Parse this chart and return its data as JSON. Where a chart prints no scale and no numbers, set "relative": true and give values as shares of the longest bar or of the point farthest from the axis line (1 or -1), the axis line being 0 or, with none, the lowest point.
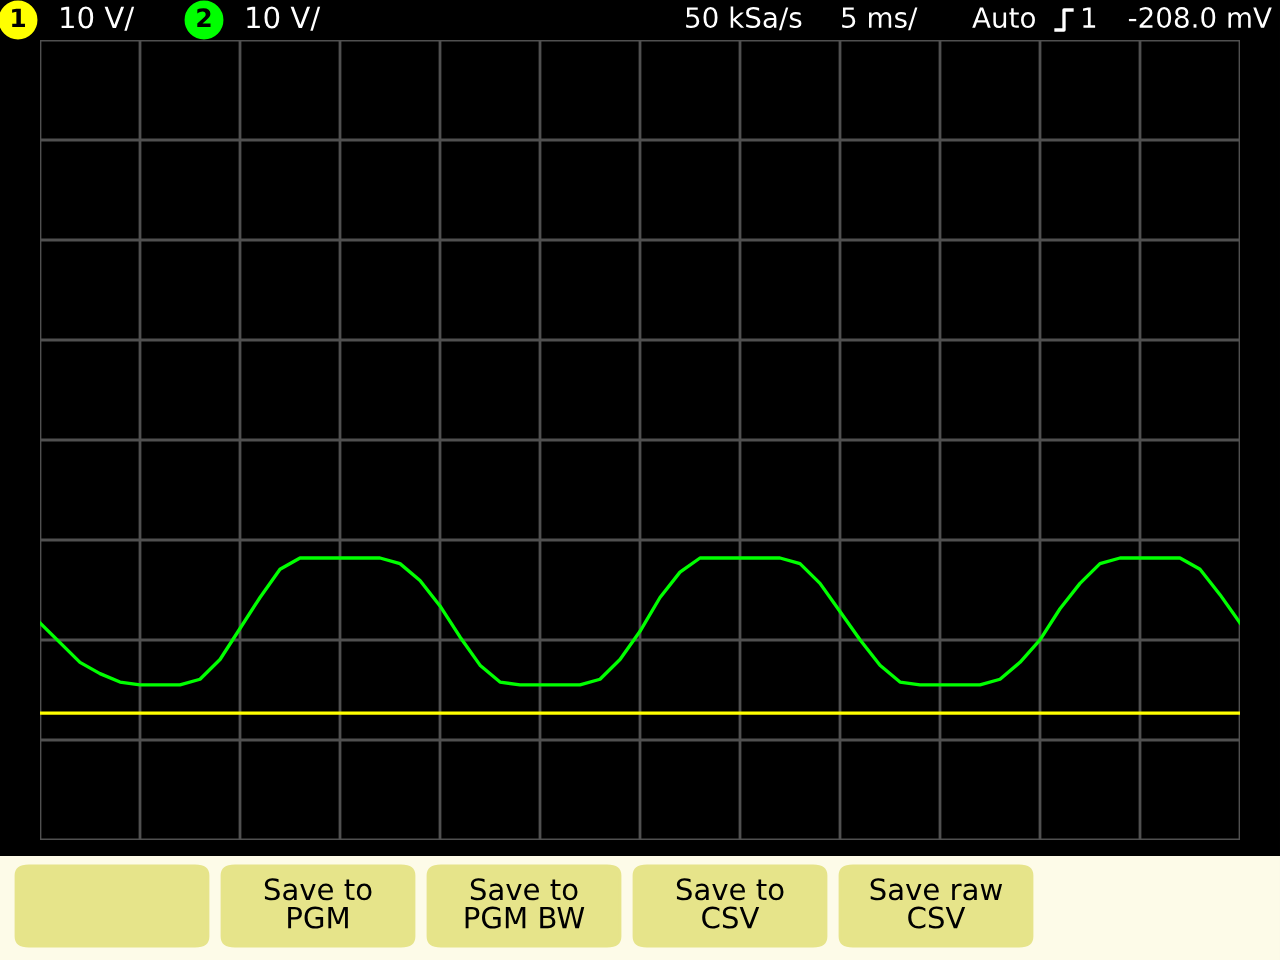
{
  "chart_data": {
    "type": "line",
    "relative": true,
    "grid": true,
    "marker": "none",
    "line_style": "solid",
    "categories": [
      null,
      null,
      null,
      null,
      null,
      null,
      null,
      null,
      null,
      null,
      null,
      null,
      null,
      null,
      null,
      null,
      null,
      null,
      null,
      null,
      null,
      null,
      null,
      null,
      null,
      null,
      null,
      null,
      null,
      null,
      null,
      null,
      null,
      null,
      null,
      null,
      null,
      null,
      null,
      null,
      null,
      null,
      null,
      null,
      null,
      null,
      null,
      null,
      null,
      null,
      null,
      null,
      null,
      null,
      null,
      null,
      null,
      null,
      null,
      null,
      null
    ],
    "series": [
      {
        "color": "#ffff00",
        "values": [
          0.45,
          0.45,
          0.45,
          0.45,
          0.45,
          0.45,
          0.45,
          0.45,
          0.45,
          0.45,
          0.45,
          0.45,
          0.45,
          0.45,
          0.45,
          0.45,
          0.45,
          0.45,
          0.45,
          0.45,
          0.45,
          0.45,
          0.45,
          0.45,
          0.45,
          0.45,
          0.45,
          0.45,
          0.45,
          0.45,
          0.45,
          0.45,
          0.45,
          0.45,
          0.45,
          0.45,
          0.45,
          0.45,
          0.45,
          0.45,
          0.45,
          0.45,
          0.45,
          0.45,
          0.45,
          0.45,
          0.45,
          0.45,
          0.45,
          0.45,
          0.45,
          0.45,
          0.45,
          0.45,
          0.45,
          0.45,
          0.45,
          0.45,
          0.45,
          0.45,
          0.45
        ]
      },
      {
        "color": "#00ff00",
        "values": [
          0.77,
          0.7,
          0.63,
          0.59,
          0.56,
          0.55,
          0.55,
          0.55,
          0.57,
          0.64,
          0.75,
          0.86,
          0.96,
          1,
          1,
          1,
          1,
          1,
          0.98,
          0.92,
          0.83,
          0.72,
          0.62,
          0.56,
          0.55,
          0.55,
          0.55,
          0.55,
          0.57,
          0.64,
          0.74,
          0.86,
          0.95,
          1,
          1,
          1,
          1,
          1,
          0.98,
          0.91,
          0.81,
          0.71,
          0.62,
          0.56,
          0.55,
          0.55,
          0.55,
          0.55,
          0.57,
          0.63,
          0.71,
          0.82,
          0.91,
          0.98,
          1,
          1,
          1,
          1,
          0.96,
          0.87,
          0.77
        ]
      }
    ],
    "annotations": [
      "1",
      "10 V/",
      "2",
      "10 V/",
      "50 kSa/s",
      "5 ms/",
      "Auto",
      "1",
      "-208.0 mV",
      "Save to\nPGM",
      "Save to\nPGM BW",
      "Save to\nCSV",
      "Save raw\nCSV"
    ]
  }
}
